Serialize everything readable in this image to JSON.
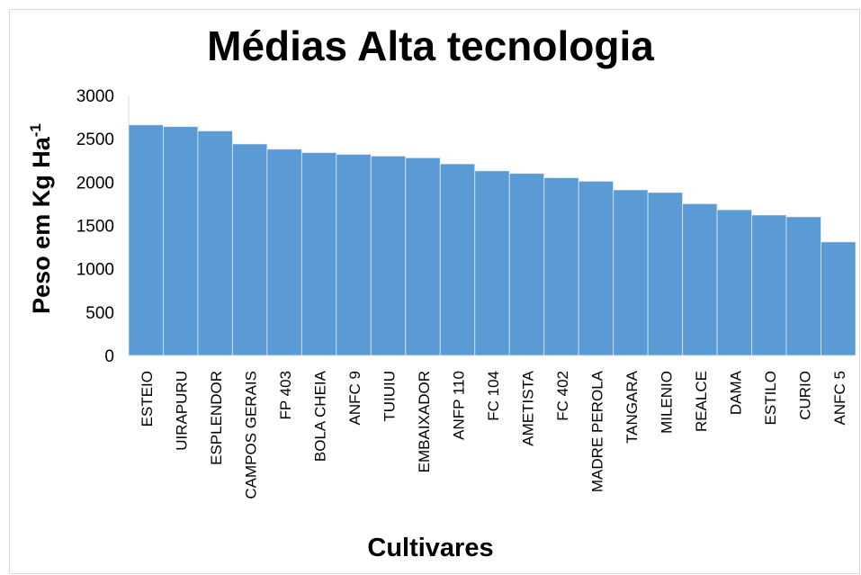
{
  "chart_data": {
    "type": "bar",
    "title": "Médias Alta tecnologia",
    "xlabel": "Cultivares",
    "ylabel": "Peso em Kg Ha",
    "ylabel_superscript": "-1",
    "ylim": [
      0,
      3000
    ],
    "yticks": [
      0,
      500,
      1000,
      1500,
      2000,
      2500,
      3000
    ],
    "bar_color": "#5b9bd5",
    "categories": [
      "ESTEIO",
      "UIRAPURU",
      "ESPLENDOR",
      "CAMPOS GERAIS",
      "FP 403",
      "BOLA CHEIA",
      "ANFC 9",
      "TUIUIU",
      "EMBAIXADOR",
      "ANFP 110",
      "FC 104",
      "AMETISTA",
      "FC  402",
      "MADRE PEROLA",
      "TANGARA",
      "MILENIO",
      "REALCE",
      "DAMA",
      "ESTILO",
      "CURIO",
      "ANFC 5"
    ],
    "values": [
      2660,
      2640,
      2590,
      2440,
      2380,
      2340,
      2320,
      2300,
      2280,
      2210,
      2130,
      2100,
      2050,
      2010,
      1910,
      1880,
      1750,
      1680,
      1620,
      1600,
      1310
    ]
  }
}
